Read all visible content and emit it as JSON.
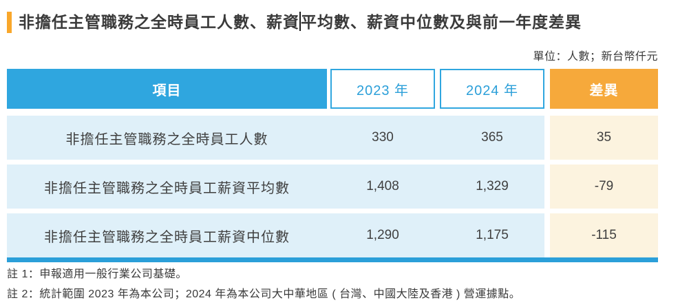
{
  "page": {
    "title_part1": "非擔任主管職務之全時員工人數、薪資",
    "title_part2": "平均數、薪資中位數及與前一年度差異",
    "unit_label": "單位：人數；新台幣仟元"
  },
  "colors": {
    "header_blue": "#2fa6df",
    "header_orange": "#f6a93b",
    "row_light_blue": "#dff0f9",
    "row_cream": "#fcf3df",
    "title_accent_orange": "#f9a72b",
    "bottom_rule_blue": "#2b9fd9",
    "year_text_blue": "#2b9fd9",
    "body_text": "#3a3a3a"
  },
  "table": {
    "headers": {
      "item": "項目",
      "year2023": "2023 年",
      "year2024": "2024 年",
      "diff": "差異"
    },
    "rows": [
      {
        "item": "非擔任主管職務之全時員工人數",
        "y2023": "330",
        "y2024": "365",
        "diff": "35"
      },
      {
        "item": "非擔任主管職務之全時員工薪資平均數",
        "y2023": "1,408",
        "y2024": "1,329",
        "diff": "-79"
      },
      {
        "item": "非擔任主管職務之全時員工薪資中位數",
        "y2023": "1,290",
        "y2024": "1,175",
        "diff": "-115"
      }
    ]
  },
  "notes": [
    "註 1：申報適用一般行業公司基礎。",
    "註 2：統計範圍 2023 年為本公司；2024 年為本公司大中華地區 ( 台灣、中國大陸及香港 ) 營運據點。"
  ]
}
